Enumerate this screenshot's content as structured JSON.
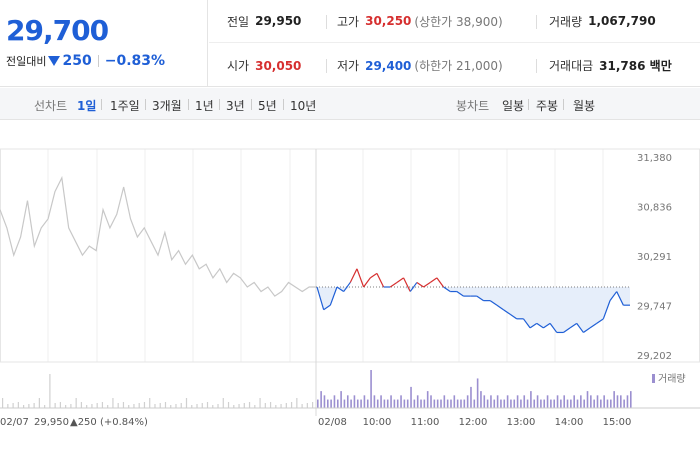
{
  "quote": {
    "price": "29,700",
    "change_label": "전일대비",
    "change_amount": "250",
    "change_pct": "−0.83%"
  },
  "stats": {
    "prev_close_label": "전일",
    "prev_close": "29,950",
    "high_label": "고가",
    "high": "30,250",
    "upper_limit": "(상한가 38,900)",
    "volume_label": "거래량",
    "volume": "1,067,790",
    "open_label": "시가",
    "open": "30,050",
    "low_label": "저가",
    "low": "29,400",
    "lower_limit": "(하한가 21,000)",
    "amount_label": "거래대금",
    "amount": "31,786 백만"
  },
  "tabs": {
    "line_chart_label": "선차트",
    "line_periods": [
      "1일",
      "1주일",
      "3개월",
      "1년",
      "3년",
      "5년",
      "10년"
    ],
    "active_period": "1일",
    "candle_chart_label": "봉차트",
    "candle_periods": [
      "일봉",
      "주봉",
      "월봉"
    ]
  },
  "colors": {
    "up": "#d62f2f",
    "down": "#1f5fd6",
    "prev_line": "#c8c8c8",
    "volume": "#9b8fd0"
  },
  "chart_data": {
    "type": "line",
    "y_ticks": [
      "31,380",
      "30,836",
      "30,291",
      "29,747",
      "29,202"
    ],
    "ylim": [
      29202,
      31380
    ],
    "reference_price": 29950,
    "x_ticks": [
      "02/08",
      "10:00",
      "11:00",
      "12:00",
      "13:00",
      "14:00",
      "15:00"
    ],
    "prev_day": {
      "date": "02/07",
      "summary": "29,950",
      "summary_change": "▲250 (+0.84%)",
      "values": [
        30800,
        30600,
        30300,
        30500,
        30900,
        30400,
        30600,
        30700,
        31000,
        31150,
        30600,
        30450,
        30300,
        30400,
        30350,
        30800,
        30600,
        30750,
        31050,
        30700,
        30500,
        30600,
        30450,
        30300,
        30550,
        30250,
        30350,
        30200,
        30300,
        30150,
        30200,
        30050,
        30150,
        30000,
        30100,
        30050,
        29950,
        30000,
        29900,
        29950,
        29850,
        29900,
        30000,
        29950,
        29900,
        29950,
        29950
      ]
    },
    "today": {
      "values": [
        29950,
        29700,
        29750,
        29950,
        29900,
        30000,
        30150,
        29950,
        30050,
        30100,
        29950,
        29950,
        30000,
        30050,
        29900,
        30000,
        29950,
        30000,
        30050,
        29950,
        29900,
        29900,
        29850,
        29850,
        29850,
        29800,
        29800,
        29750,
        29700,
        29650,
        29600,
        29600,
        29500,
        29550,
        29500,
        29550,
        29450,
        29450,
        29500,
        29550,
        29450,
        29500,
        29550,
        29600,
        29800,
        29900,
        29750,
        29750
      ]
    },
    "volume_label": "거래량",
    "volume_values": [
      2,
      4,
      3,
      2,
      2,
      3,
      2,
      4,
      2,
      3,
      2,
      3,
      2,
      2,
      3,
      2,
      9,
      3,
      2,
      3,
      2,
      2,
      3,
      2,
      2,
      3,
      2,
      2,
      5,
      2,
      3,
      2,
      2,
      4,
      3,
      2,
      2,
      2,
      3,
      2,
      2,
      3,
      2,
      2,
      2,
      3,
      5,
      2,
      7,
      4,
      3,
      2,
      3,
      2,
      3,
      2,
      2,
      3,
      2,
      2,
      3,
      2,
      3,
      2,
      4,
      2,
      3,
      2,
      2,
      3,
      2,
      2,
      3,
      2,
      3,
      2,
      2,
      3,
      2,
      3,
      2,
      4,
      3,
      2,
      3,
      2,
      3,
      2,
      2,
      4,
      3,
      3,
      2,
      3,
      4
    ]
  }
}
